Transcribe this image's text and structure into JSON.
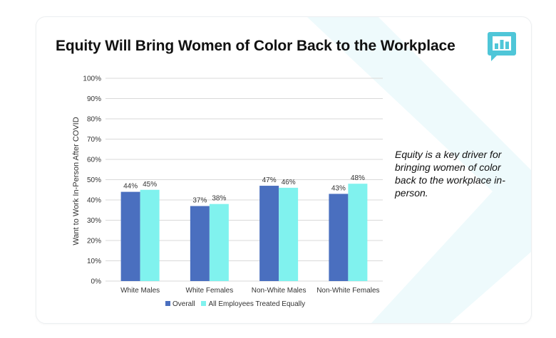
{
  "title": "Equity Will Bring Women of Color Back to the Workplace",
  "note": "Equity is a key driver for bringing women of color back to the workplace in-person.",
  "logo_icon": "bar-chart-speech-bubble-icon",
  "colors": {
    "overall": "#4a6fbf",
    "equal": "#80f2ee",
    "grid": "#d9d9d9",
    "logo": "#4fc6d8",
    "deco": "#eef9fb"
  },
  "chart_data": {
    "type": "bar",
    "title": "",
    "xlabel": "",
    "ylabel": "Want to Work In-Person After COVID",
    "categories": [
      "White Males",
      "White Females",
      "Non-White Males",
      "Non-White Females"
    ],
    "series": [
      {
        "name": "Overall",
        "values": [
          44,
          37,
          47,
          43
        ]
      },
      {
        "name": "All Employees Treated Equally",
        "values": [
          45,
          38,
          46,
          48
        ]
      }
    ],
    "ylim": [
      0,
      100
    ],
    "yticks": [
      "0%",
      "10%",
      "20%",
      "30%",
      "40%",
      "50%",
      "60%",
      "70%",
      "80%",
      "90%",
      "100%"
    ],
    "data_labels": [
      [
        "44%",
        "37%",
        "47%",
        "43%"
      ],
      [
        "45%",
        "38%",
        "46%",
        "48%"
      ]
    ],
    "grid": true,
    "legend": "bottom"
  }
}
